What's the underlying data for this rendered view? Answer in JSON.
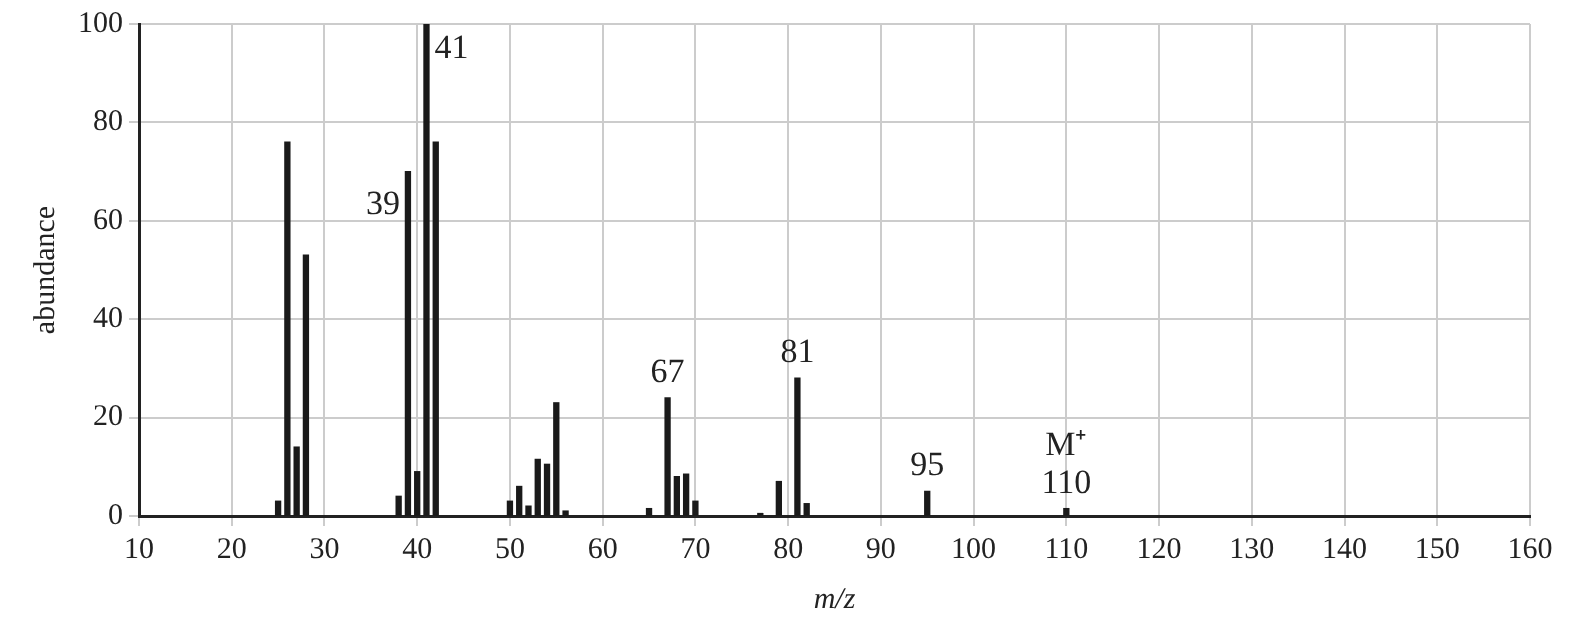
{
  "chart_data": {
    "type": "bar",
    "xlabel": "m/z",
    "ylabel": "abundance",
    "x": [
      25,
      26,
      27,
      28,
      38,
      39,
      40,
      41,
      42,
      50,
      51,
      52,
      53,
      54,
      55,
      56,
      65,
      67,
      68,
      69,
      70,
      77,
      79,
      81,
      82,
      95,
      110
    ],
    "values": [
      3,
      76,
      14,
      53,
      4,
      70,
      9,
      100,
      76,
      3,
      6,
      2,
      11.5,
      10.5,
      23,
      1,
      1.5,
      24,
      8,
      8.5,
      3,
      0.5,
      7,
      28,
      2.5,
      5,
      1.5
    ],
    "color": "#1a1a1a",
    "xlim": [
      10,
      160
    ],
    "xticks": [
      10,
      20,
      30,
      40,
      50,
      60,
      70,
      80,
      90,
      100,
      110,
      120,
      130,
      140,
      150,
      160
    ],
    "ylim": [
      0,
      100
    ],
    "yticks": [
      0,
      20,
      40,
      60,
      80,
      100
    ],
    "grid": true,
    "legend": false,
    "annotations": [
      {
        "text": "39",
        "x": 39,
        "y": 70
      },
      {
        "text": "41",
        "x": 41,
        "y": 100
      },
      {
        "text": "67",
        "x": 67,
        "y": 24
      },
      {
        "text": "81",
        "x": 81,
        "y": 28
      },
      {
        "text": "95",
        "x": 95,
        "y": 5
      },
      {
        "text": "110",
        "x": 110,
        "y": 1.5
      },
      {
        "text": "M⁺",
        "x": 110,
        "y": 1.5
      }
    ]
  }
}
